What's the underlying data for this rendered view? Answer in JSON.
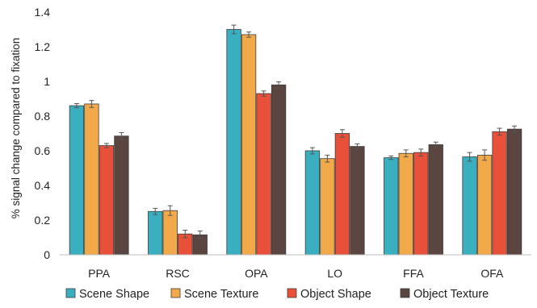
{
  "chart_data": {
    "type": "bar",
    "title": "",
    "xlabel": "",
    "ylabel": "% signal change compared to fixation",
    "ylim": [
      0,
      1.4
    ],
    "yticks": [
      0,
      0.2,
      0.4,
      0.6,
      0.8,
      1,
      1.2,
      1.4
    ],
    "ytick_labels": [
      "0",
      "0.2",
      "0.4",
      "0.6",
      "0.8",
      "1",
      "1.2",
      "1.4"
    ],
    "grid": false,
    "legend_position": "bottom",
    "categories": [
      "PPA",
      "RSC",
      "OPA",
      "LO",
      "FFA",
      "OFA"
    ],
    "series": [
      {
        "name": "Scene Shape",
        "color": "#3aafc0",
        "values": [
          0.86,
          0.25,
          1.3,
          0.6,
          0.56,
          0.565
        ],
        "errors": [
          0.012,
          0.018,
          0.025,
          0.018,
          0.01,
          0.025
        ]
      },
      {
        "name": "Scene Texture",
        "color": "#f2a94a",
        "values": [
          0.87,
          0.255,
          1.27,
          0.555,
          0.585,
          0.575
        ],
        "errors": [
          0.02,
          0.028,
          0.015,
          0.02,
          0.02,
          0.03
        ]
      },
      {
        "name": "Object Shape",
        "color": "#e8503a",
        "values": [
          0.63,
          0.12,
          0.93,
          0.7,
          0.59,
          0.71
        ],
        "errors": [
          0.012,
          0.022,
          0.015,
          0.022,
          0.02,
          0.02
        ]
      },
      {
        "name": "Object Texture",
        "color": "#5a4540",
        "values": [
          0.685,
          0.115,
          0.98,
          0.625,
          0.635,
          0.725
        ],
        "errors": [
          0.02,
          0.022,
          0.018,
          0.015,
          0.015,
          0.018
        ]
      }
    ]
  }
}
